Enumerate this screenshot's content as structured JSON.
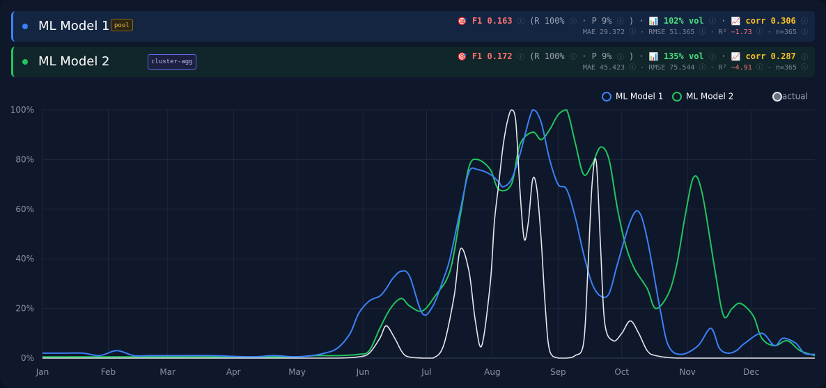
{
  "models": [
    {
      "name": "ML Model 1",
      "tag": "pool",
      "color": "#3b82f6",
      "f1_label": "F1 0.163",
      "recall": "(R 100%",
      "precision": "P 9%",
      "paren_close": ")",
      "vol_label": "102% vol",
      "corr_label": "corr 0.306",
      "mae": "MAE 29.372",
      "rmse": "RMSE 51.365",
      "r2_label": "R²",
      "r2_value": "−1.73",
      "n": "n=365"
    },
    {
      "name": "ML Model 2",
      "tag": "cluster-agg",
      "color": "#22c55e",
      "f1_label": "F1 0.172",
      "recall": "(R 100%",
      "precision": "P 9%",
      "paren_close": ")",
      "vol_label": "135% vol",
      "corr_label": "corr 0.287",
      "mae": "MAE 45.423",
      "rmse": "RMSE 75.544",
      "r2_label": "R²",
      "r2_value": "−4.91",
      "n": "n=365"
    }
  ],
  "icons": {
    "target": "🎯",
    "bar_chart": "📊",
    "trend": "📈",
    "info": "ⓘ",
    "sep": "·"
  },
  "legend": [
    {
      "label": "ML Model 1",
      "color": "#3b82f6"
    },
    {
      "label": "ML Model 2",
      "color": "#22c55e"
    },
    {
      "label": "actual",
      "color": "#e5e7eb"
    }
  ],
  "chart_data": {
    "type": "line",
    "x_tick_labels": [
      "Jan",
      "Feb",
      "Mar",
      "Apr",
      "May",
      "Jun",
      "Jul",
      "Aug",
      "Sep",
      "Oct",
      "Nov",
      "Dec"
    ],
    "y_tick_labels": [
      "0%",
      "20%",
      "40%",
      "60%",
      "80%",
      "100%"
    ],
    "ylim": [
      0,
      100
    ],
    "xlim": [
      1,
      365
    ],
    "x_unit": "day of year",
    "grid": true,
    "legend_position": "top-right",
    "series": [
      {
        "name": "ML Model 1",
        "color": "#3b82f6",
        "x": [
          1,
          10,
          20,
          28,
          36,
          44,
          52,
          62,
          80,
          100,
          110,
          120,
          128,
          134,
          140,
          146,
          150,
          155,
          160,
          163,
          166,
          170,
          174,
          180,
          185,
          190,
          193,
          198,
          202,
          206,
          212,
          216,
          218,
          222,
          226,
          232,
          236,
          240,
          244,
          248,
          252,
          256,
          260,
          264,
          268,
          272,
          278,
          282,
          286,
          292,
          296,
          302,
          310,
          316,
          320,
          324,
          328,
          332,
          340,
          346,
          350,
          356,
          360,
          365
        ],
        "y": [
          2,
          2,
          2,
          1,
          3,
          1,
          1,
          1,
          1,
          0.5,
          1,
          0.5,
          1,
          2,
          4,
          10,
          18,
          23,
          25,
          28,
          32,
          35,
          33,
          18,
          21,
          32,
          40,
          60,
          75,
          76,
          74,
          71,
          69,
          72,
          82,
          100,
          95,
          80,
          70,
          68,
          57,
          42,
          30,
          25,
          26,
          38,
          55,
          59,
          48,
          20,
          5,
          1.5,
          5,
          12,
          4,
          2,
          3,
          6,
          10,
          5,
          8,
          6,
          2,
          1.5
        ]
      },
      {
        "name": "ML Model 2",
        "color": "#22c55e",
        "x": [
          1,
          20,
          40,
          60,
          80,
          100,
          120,
          130,
          140,
          150,
          155,
          160,
          165,
          170,
          174,
          180,
          186,
          193,
          198,
          202,
          206,
          212,
          216,
          222,
          226,
          232,
          236,
          240,
          244,
          248,
          252,
          256,
          260,
          264,
          268,
          272,
          276,
          280,
          286,
          290,
          296,
          300,
          304,
          308,
          312,
          318,
          322,
          326,
          330,
          336,
          340,
          346,
          352,
          358,
          365
        ],
        "y": [
          0.5,
          0.5,
          0.5,
          0.5,
          0.5,
          0.5,
          0.5,
          1,
          1,
          1.5,
          3,
          12,
          20,
          24,
          21,
          19,
          25,
          35,
          58,
          77,
          80,
          76,
          68,
          70,
          86,
          91,
          88,
          92,
          98,
          100,
          87,
          74,
          78,
          85,
          80,
          60,
          45,
          36,
          28,
          20,
          26,
          38,
          58,
          73,
          66,
          35,
          17,
          20,
          22,
          17,
          8,
          5,
          7,
          3,
          1
        ]
      },
      {
        "name": "actual",
        "color": "#e5e7eb",
        "x": [
          1,
          40,
          80,
          120,
          140,
          150,
          155,
          160,
          163,
          167,
          172,
          180,
          185,
          190,
          195,
          198,
          202,
          205,
          208,
          212,
          214,
          216,
          218,
          220,
          222,
          224,
          226,
          228,
          230,
          232,
          234,
          236,
          238,
          240,
          244,
          248,
          252,
          256,
          258,
          260,
          262,
          264,
          266,
          270,
          274,
          278,
          282,
          286,
          290,
          300,
          320,
          340,
          365
        ],
        "y": [
          0,
          0,
          0,
          0,
          0,
          0.5,
          2,
          8,
          13,
          8,
          1,
          0,
          0,
          5,
          25,
          44,
          35,
          15,
          5,
          30,
          55,
          70,
          85,
          95,
          100,
          96,
          68,
          48,
          55,
          72,
          68,
          48,
          20,
          3,
          0,
          0,
          1,
          6,
          35,
          70,
          79,
          45,
          14,
          7,
          10,
          15,
          10,
          3,
          1,
          0,
          0,
          0,
          0
        ]
      }
    ]
  }
}
